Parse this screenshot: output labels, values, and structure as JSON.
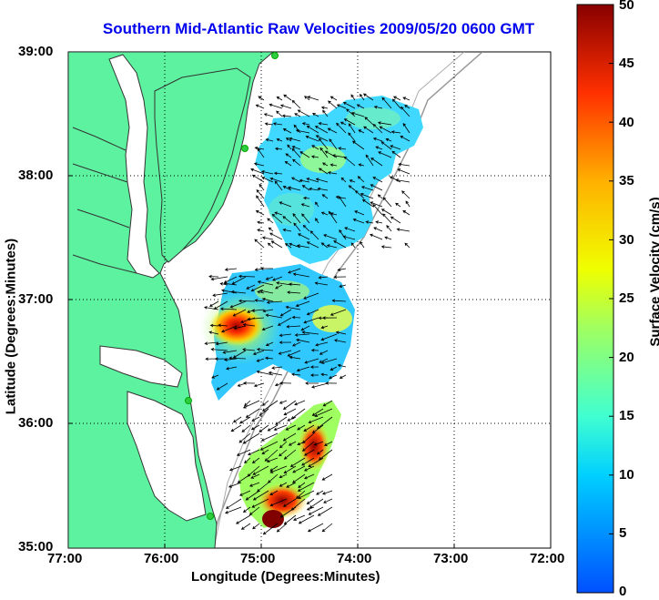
{
  "title": "Southern Mid-Atlantic Raw Velocities 2009/05/20 0600 GMT",
  "x_axis": {
    "label": "Longitude (Degrees:Minutes)",
    "ticks": [
      "77:00",
      "76:00",
      "75:00",
      "74:00",
      "73:00",
      "72:00"
    ]
  },
  "y_axis": {
    "label": "Latitude (Degrees:Minutes)",
    "ticks": [
      "39:00",
      "38:00",
      "37:00",
      "36:00",
      "35:00"
    ]
  },
  "colorbar": {
    "label": "Surface Velocity (cm/s)",
    "ticks": [
      "50",
      "45",
      "40",
      "35",
      "30",
      "25",
      "20",
      "15",
      "10",
      "5",
      "0"
    ],
    "min": 0,
    "max": 50
  },
  "colors": {
    "land": "#5cf29f",
    "title": "#0000ee",
    "coast_lines": "#333333",
    "bathymetry": "#999999"
  },
  "map": {
    "extent_lon": [
      -77,
      -72
    ],
    "extent_lat": [
      35,
      39
    ],
    "grid": true,
    "vector_field": true
  },
  "chart_data": {
    "type": "heatmap",
    "title": "Southern Mid-Atlantic Raw Velocities 2009/05/20 0600 GMT",
    "xlabel": "Longitude (Degrees:Minutes)",
    "ylabel": "Latitude (Degrees:Minutes)",
    "xlim": [
      -77,
      -72
    ],
    "ylim": [
      35,
      39
    ],
    "colorbar_range": [
      0,
      50
    ],
    "colorbar_label": "Surface Velocity (cm/s)",
    "hotspots": [
      {
        "lon": -75.2,
        "lat": 36.6,
        "velocity": 48
      },
      {
        "lon": -74.5,
        "lat": 35.8,
        "velocity": 47
      },
      {
        "lon": -74.8,
        "lat": 35.3,
        "velocity": 45
      },
      {
        "lon": -74.3,
        "lat": 36.8,
        "velocity": 22
      },
      {
        "lon": -74.3,
        "lat": 38.2,
        "velocity": 25
      }
    ]
  }
}
